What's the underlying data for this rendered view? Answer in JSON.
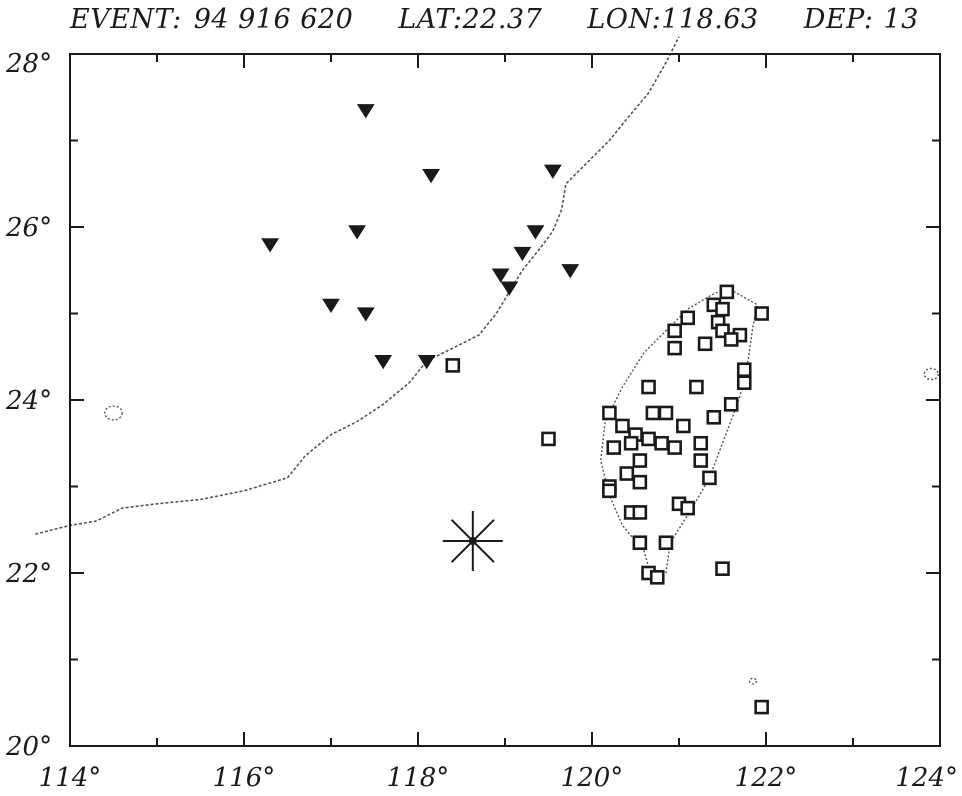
{
  "header": {
    "event_label": "EVENT:",
    "event_id": "94 916 620",
    "lat_label": "LAT:",
    "lat_value": "22.37",
    "lon_label": "LON:",
    "lon_value": "118.63",
    "dep_label": "DEP:",
    "dep_value": "13"
  },
  "map": {
    "lon_range": [
      114,
      124
    ],
    "lat_range": [
      20,
      28
    ],
    "x_tick_labels": [
      "114°",
      "116°",
      "118°",
      "120°",
      "122°",
      "124°"
    ],
    "y_tick_labels": [
      "20°",
      "22°",
      "24°",
      "26°",
      "28°"
    ],
    "x_ticks": [
      114,
      116,
      118,
      120,
      122,
      124
    ],
    "y_ticks": [
      20,
      22,
      24,
      26,
      28
    ],
    "minor_x_ticks": [
      115,
      117,
      119,
      121,
      123
    ],
    "minor_y_ticks": [
      21,
      23,
      25,
      27
    ],
    "epicenter": {
      "lon": 118.63,
      "lat": 22.37,
      "symbol": "asterisk"
    },
    "triangle_stations": [
      {
        "lon": 117.4,
        "lat": 27.35
      },
      {
        "lon": 118.15,
        "lat": 26.6
      },
      {
        "lon": 119.55,
        "lat": 26.65
      },
      {
        "lon": 116.3,
        "lat": 25.8
      },
      {
        "lon": 117.3,
        "lat": 25.95
      },
      {
        "lon": 119.35,
        "lat": 25.95
      },
      {
        "lon": 119.2,
        "lat": 25.7
      },
      {
        "lon": 119.75,
        "lat": 25.5
      },
      {
        "lon": 118.95,
        "lat": 25.45
      },
      {
        "lon": 119.05,
        "lat": 25.3
      },
      {
        "lon": 117.0,
        "lat": 25.1
      },
      {
        "lon": 117.4,
        "lat": 25.0
      },
      {
        "lon": 117.6,
        "lat": 24.45
      },
      {
        "lon": 118.1,
        "lat": 24.45
      }
    ],
    "square_stations": [
      {
        "lon": 118.4,
        "lat": 24.4
      },
      {
        "lon": 119.5,
        "lat": 23.55
      },
      {
        "lon": 121.55,
        "lat": 25.25
      },
      {
        "lon": 121.4,
        "lat": 25.1
      },
      {
        "lon": 121.5,
        "lat": 25.05
      },
      {
        "lon": 121.95,
        "lat": 25.0
      },
      {
        "lon": 121.1,
        "lat": 24.95
      },
      {
        "lon": 121.45,
        "lat": 24.9
      },
      {
        "lon": 121.5,
        "lat": 24.8
      },
      {
        "lon": 120.95,
        "lat": 24.8
      },
      {
        "lon": 121.7,
        "lat": 24.75
      },
      {
        "lon": 121.6,
        "lat": 24.7
      },
      {
        "lon": 121.3,
        "lat": 24.65
      },
      {
        "lon": 120.95,
        "lat": 24.6
      },
      {
        "lon": 121.75,
        "lat": 24.35
      },
      {
        "lon": 121.75,
        "lat": 24.2
      },
      {
        "lon": 120.65,
        "lat": 24.15
      },
      {
        "lon": 121.2,
        "lat": 24.15
      },
      {
        "lon": 121.6,
        "lat": 23.95
      },
      {
        "lon": 120.2,
        "lat": 23.85
      },
      {
        "lon": 120.7,
        "lat": 23.85
      },
      {
        "lon": 120.85,
        "lat": 23.85
      },
      {
        "lon": 121.4,
        "lat": 23.8
      },
      {
        "lon": 120.35,
        "lat": 23.7
      },
      {
        "lon": 121.05,
        "lat": 23.7
      },
      {
        "lon": 120.5,
        "lat": 23.6
      },
      {
        "lon": 120.65,
        "lat": 23.55
      },
      {
        "lon": 120.25,
        "lat": 23.45
      },
      {
        "lon": 120.45,
        "lat": 23.5
      },
      {
        "lon": 120.8,
        "lat": 23.5
      },
      {
        "lon": 120.95,
        "lat": 23.45
      },
      {
        "lon": 121.25,
        "lat": 23.5
      },
      {
        "lon": 120.55,
        "lat": 23.3
      },
      {
        "lon": 121.25,
        "lat": 23.3
      },
      {
        "lon": 120.4,
        "lat": 23.15
      },
      {
        "lon": 120.55,
        "lat": 23.05
      },
      {
        "lon": 121.35,
        "lat": 23.1
      },
      {
        "lon": 120.2,
        "lat": 23.0
      },
      {
        "lon": 120.2,
        "lat": 22.95
      },
      {
        "lon": 121.0,
        "lat": 22.8
      },
      {
        "lon": 121.1,
        "lat": 22.75
      },
      {
        "lon": 120.45,
        "lat": 22.7
      },
      {
        "lon": 120.55,
        "lat": 22.7
      },
      {
        "lon": 120.55,
        "lat": 22.35
      },
      {
        "lon": 120.85,
        "lat": 22.35
      },
      {
        "lon": 120.65,
        "lat": 22.0
      },
      {
        "lon": 120.75,
        "lat": 21.95
      },
      {
        "lon": 121.5,
        "lat": 22.05
      },
      {
        "lon": 121.95,
        "lat": 20.45
      }
    ],
    "coastline_mainland": [
      [
        113.6,
        22.45
      ],
      [
        114.0,
        22.55
      ],
      [
        114.3,
        22.6
      ],
      [
        114.6,
        22.75
      ],
      [
        115.0,
        22.8
      ],
      [
        115.5,
        22.85
      ],
      [
        116.0,
        22.95
      ],
      [
        116.5,
        23.1
      ],
      [
        116.7,
        23.35
      ],
      [
        117.0,
        23.6
      ],
      [
        117.3,
        23.75
      ],
      [
        117.6,
        23.95
      ],
      [
        117.9,
        24.2
      ],
      [
        118.1,
        24.45
      ],
      [
        118.4,
        24.6
      ],
      [
        118.7,
        24.75
      ],
      [
        118.9,
        25.0
      ],
      [
        119.05,
        25.25
      ],
      [
        119.2,
        25.5
      ],
      [
        119.4,
        25.75
      ],
      [
        119.55,
        25.95
      ],
      [
        119.65,
        26.2
      ],
      [
        119.7,
        26.5
      ],
      [
        119.95,
        26.75
      ],
      [
        120.2,
        27.0
      ],
      [
        120.4,
        27.25
      ],
      [
        120.65,
        27.55
      ],
      [
        120.85,
        27.9
      ],
      [
        121.0,
        28.2
      ]
    ],
    "coastline_taiwan": [
      [
        121.55,
        25.3
      ],
      [
        121.9,
        25.1
      ],
      [
        121.85,
        24.85
      ],
      [
        121.8,
        24.5
      ],
      [
        121.75,
        24.2
      ],
      [
        121.65,
        23.9
      ],
      [
        121.5,
        23.5
      ],
      [
        121.35,
        23.1
      ],
      [
        121.15,
        22.75
      ],
      [
        120.9,
        22.35
      ],
      [
        120.85,
        22.0
      ],
      [
        120.7,
        21.9
      ],
      [
        120.6,
        22.25
      ],
      [
        120.35,
        22.55
      ],
      [
        120.2,
        22.9
      ],
      [
        120.1,
        23.3
      ],
      [
        120.15,
        23.75
      ],
      [
        120.35,
        24.15
      ],
      [
        120.6,
        24.55
      ],
      [
        120.9,
        24.85
      ],
      [
        121.1,
        25.05
      ],
      [
        121.35,
        25.2
      ],
      [
        121.55,
        25.3
      ]
    ],
    "islands": [
      {
        "lon": 114.5,
        "lat": 23.85,
        "r": 0.1
      },
      {
        "lon": 123.9,
        "lat": 24.3,
        "r": 0.08
      },
      {
        "lon": 121.85,
        "lat": 20.75,
        "r": 0.04
      }
    ]
  }
}
